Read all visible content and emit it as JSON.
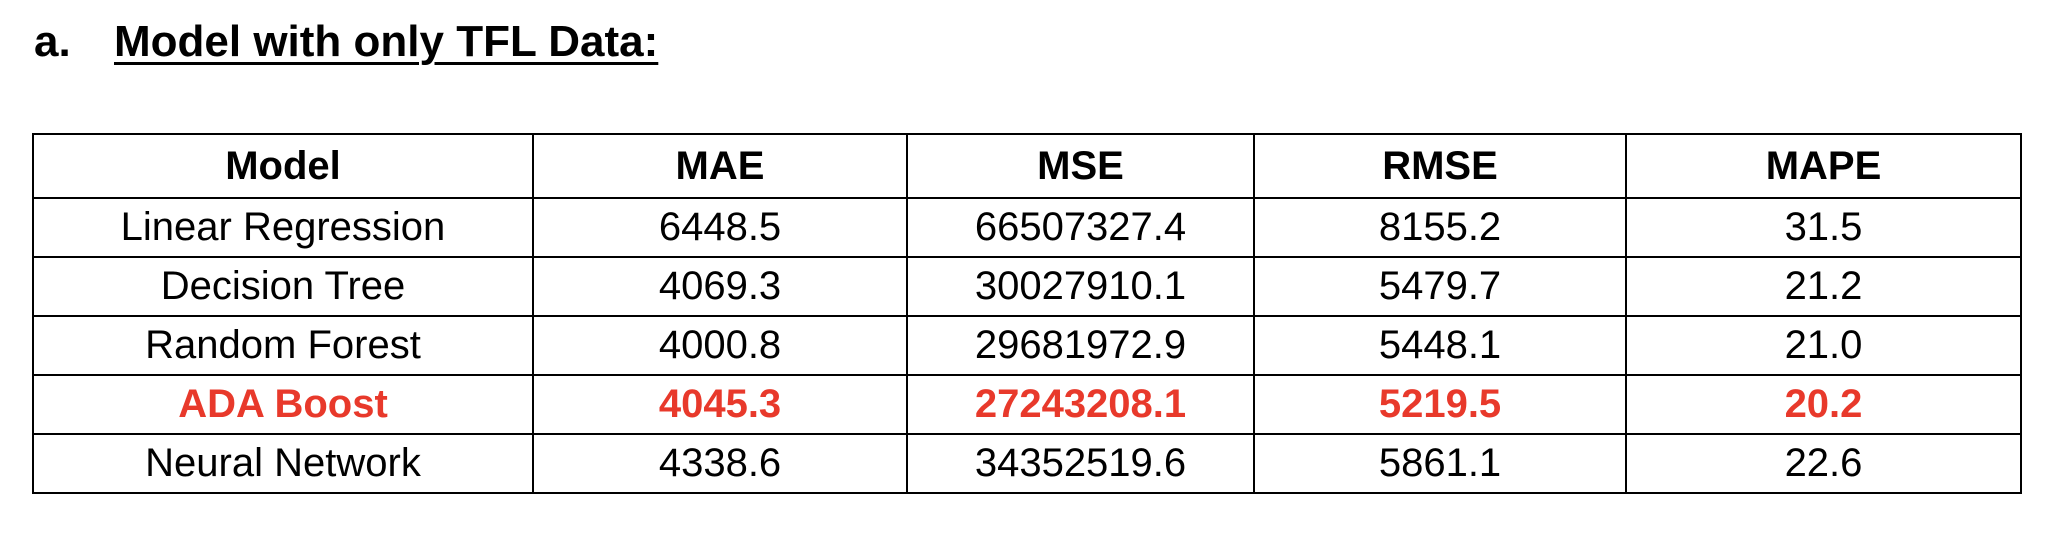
{
  "heading": {
    "prefix": "a.",
    "title": "Model with only TFL Data:"
  },
  "table": {
    "columns": [
      "Model",
      "MAE",
      "MSE",
      "RMSE",
      "MAPE"
    ],
    "rows": [
      [
        "Linear Regression",
        "6448.5",
        "66507327.4",
        "8155.2",
        "31.5"
      ],
      [
        "Decision Tree",
        "4069.3",
        "30027910.1",
        "5479.7",
        "21.2"
      ],
      [
        "Random Forest",
        "4000.8",
        "29681972.9",
        "5448.1",
        "21.0"
      ],
      [
        "ADA Boost",
        "4045.3",
        "27243208.1",
        "5219.5",
        "20.2"
      ],
      [
        "Neural Network",
        "4338.6",
        "34352519.6",
        "5861.1",
        "22.6"
      ]
    ],
    "highlighted_row": "ADA Boost",
    "highlight_color": "#e8392b"
  }
}
